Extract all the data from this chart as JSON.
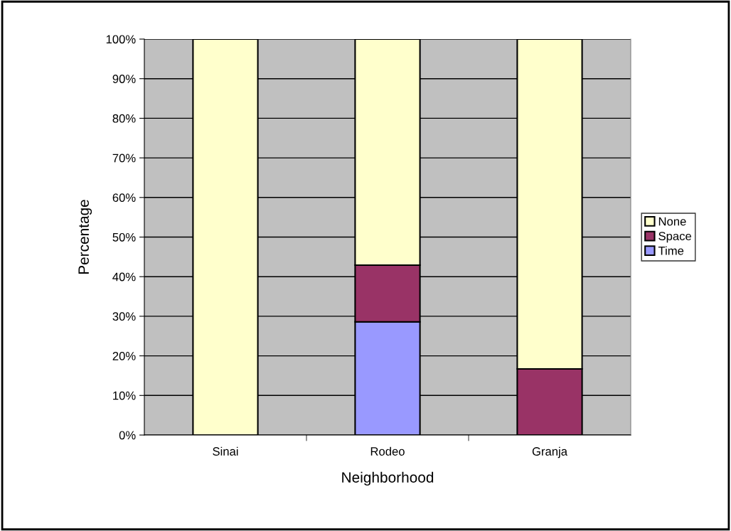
{
  "chart_data": {
    "type": "bar",
    "stacked": true,
    "xlabel": "Neighborhood",
    "ylabel": "Percentage",
    "categories": [
      "Sinai",
      "Rodeo",
      "Granja"
    ],
    "series": [
      {
        "name": "Time",
        "color": "#9999ff",
        "values": [
          0,
          28.6,
          0
        ]
      },
      {
        "name": "Space",
        "color": "#993366",
        "values": [
          0,
          14.3,
          16.7
        ]
      },
      {
        "name": "None",
        "color": "#ffffcc",
        "values": [
          100,
          57.1,
          83.3
        ]
      }
    ],
    "ylim": [
      0,
      100
    ],
    "yticks": [
      {
        "value": 0,
        "label": "0%"
      },
      {
        "value": 10,
        "label": "10%"
      },
      {
        "value": 20,
        "label": "20%"
      },
      {
        "value": 30,
        "label": "30%"
      },
      {
        "value": 40,
        "label": "40%"
      },
      {
        "value": 50,
        "label": "50%"
      },
      {
        "value": 60,
        "label": "60%"
      },
      {
        "value": 70,
        "label": "70%"
      },
      {
        "value": 80,
        "label": "80%"
      },
      {
        "value": 90,
        "label": "90%"
      },
      {
        "value": 100,
        "label": "100%"
      }
    ],
    "grid": "y",
    "legend": "right"
  }
}
